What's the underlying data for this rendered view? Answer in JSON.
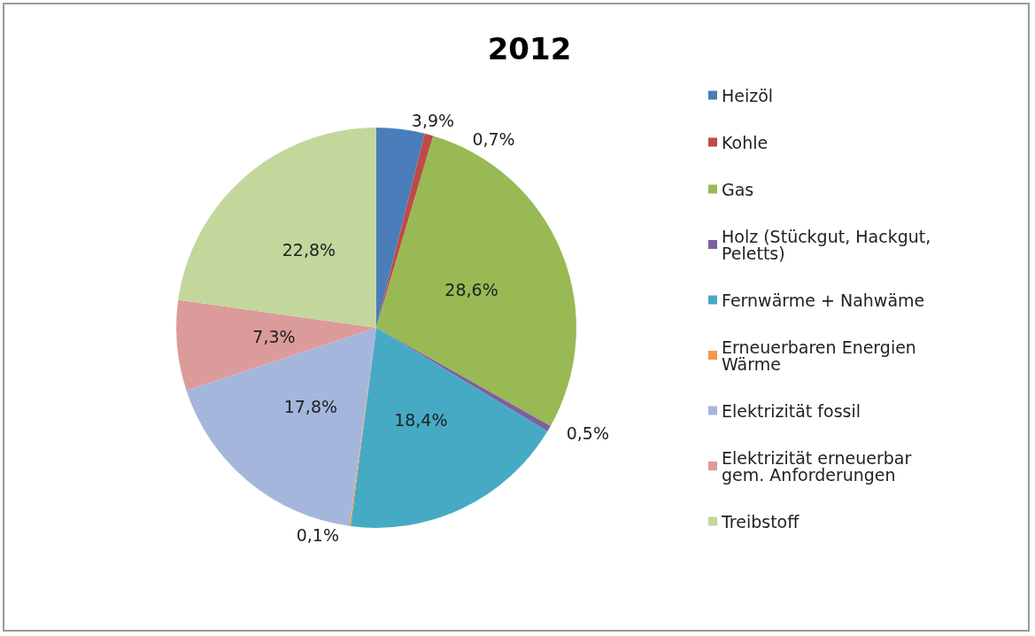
{
  "chart_data": {
    "type": "pie",
    "title": "2012",
    "categories": [
      "Heizöl",
      "Kohle",
      "Gas",
      "Holz (Stückgut, Hackgut, Peletts)",
      "Fernwärme + Nahwäme",
      "Erneuerbaren Energien Wärme",
      "Elektrizität fossil",
      "Elektrizität erneuerbar gem. Anforderungen",
      "Treibstoff"
    ],
    "values": [
      3.9,
      0.7,
      28.6,
      0.5,
      18.4,
      0.1,
      17.8,
      7.3,
      22.8
    ],
    "colors": [
      "#4a7ebb",
      "#be4b48",
      "#98b954",
      "#7d60a0",
      "#46aac5",
      "#f79646",
      "#a5b6dc",
      "#dc9b9b",
      "#c3d69b"
    ],
    "value_labels": [
      "3,9%",
      "0,7%",
      "28,6%",
      "0,5%",
      "18,4%",
      "0,1%",
      "17,8%",
      "7,3%",
      "22,8%"
    ],
    "legend": "right"
  }
}
